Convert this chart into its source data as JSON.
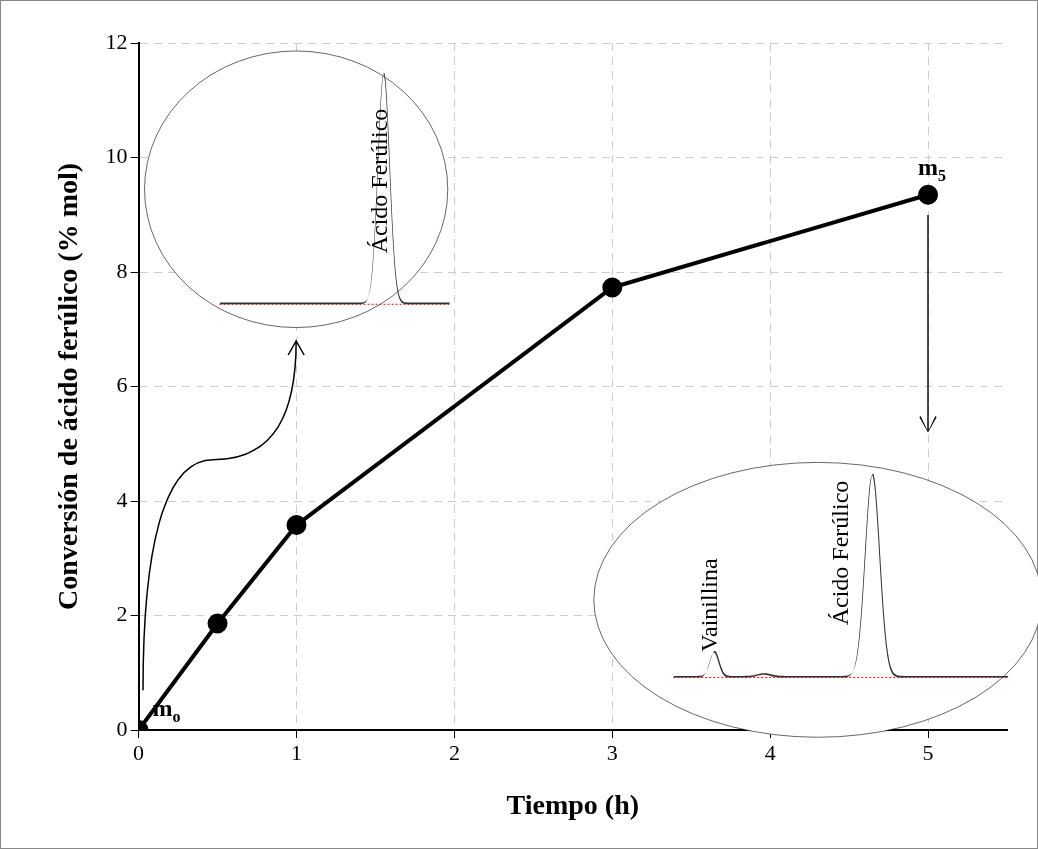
{
  "chart_data": {
    "type": "line",
    "xlabel": "Tiempo (h)",
    "ylabel": "Conversión de ácido ferúlico (% mol)",
    "x": [
      0,
      0.5,
      1,
      3,
      5
    ],
    "series": [
      {
        "color": "#000000",
        "values": [
          0,
          1.86,
          3.58,
          7.73,
          9.35
        ]
      }
    ],
    "xlim": [
      0,
      5.5
    ],
    "xticks": [
      0,
      1,
      2,
      3,
      4,
      5
    ],
    "ylim": [
      0,
      12
    ],
    "yticks": [
      0,
      2,
      4,
      6,
      8,
      10,
      12
    ],
    "grid": true,
    "marker": "circle",
    "line_style": "solid",
    "annotations": [
      {
        "text": "m$_{o}$",
        "x": 0,
        "y": 0
      },
      {
        "text": "m$_{5}$",
        "x": 5,
        "y": 9.35
      },
      "Ácido Ferúlico",
      "Vainillina",
      "Ácido Ferúlico"
    ]
  }
}
